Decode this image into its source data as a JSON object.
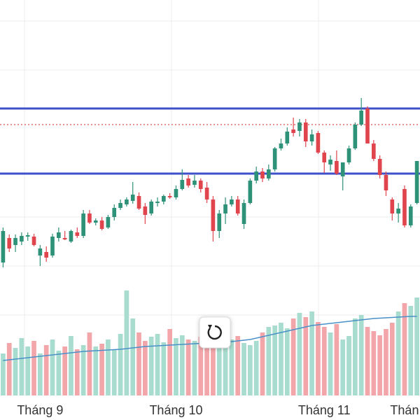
{
  "chart_data": {
    "type": "candlestick",
    "categories": [
      null,
      null,
      null,
      null,
      null,
      null,
      "Tháng 9",
      null,
      null,
      null,
      null,
      null,
      null,
      null,
      null,
      null,
      null,
      null,
      null,
      null,
      null,
      null,
      null,
      null,
      null,
      null,
      null,
      null,
      "Tháng 10",
      null,
      null,
      null,
      null,
      null,
      null,
      null,
      null,
      null,
      null,
      null,
      null,
      null,
      null,
      null,
      null,
      null,
      null,
      null,
      null,
      null,
      null,
      null,
      "Tháng 11",
      null,
      null,
      null,
      null,
      null,
      null,
      null,
      null,
      null,
      null,
      null,
      null,
      "Thán",
      null,
      null
    ],
    "open": [
      22.5,
      26,
      25,
      25.5,
      26.2,
      26.2,
      23.5,
      24,
      23.5,
      26,
      26,
      25.5,
      26.8,
      26.3,
      29.5,
      28.2,
      28.5,
      27.5,
      29,
      30.3,
      30.8,
      31.3,
      32,
      30.5,
      29.5,
      31,
      31.2,
      32,
      31.8,
      33,
      34.5,
      33.6,
      34.2,
      33.2,
      31.5,
      27,
      29.5,
      30.8,
      31.5,
      28,
      31,
      34.2,
      35.5,
      34.5,
      35.8,
      38.8,
      39.5,
      41.5,
      41.3,
      42.5,
      39.8,
      41,
      38.2,
      36.5,
      37,
      34.8,
      36.8,
      38.8,
      42.2,
      44.5,
      39.5,
      37.3,
      35,
      31.5,
      29.5,
      33,
      27.8,
      31
    ],
    "high": [
      27.5,
      26.5,
      26.5,
      26.8,
      26.8,
      26.6,
      25,
      24.8,
      26.6,
      27.5,
      27,
      27.2,
      27.5,
      30,
      30,
      28.8,
      29,
      29.3,
      30.8,
      31.5,
      31.8,
      34,
      32.5,
      31,
      31.5,
      31.8,
      32.2,
      32.4,
      33.5,
      35.8,
      35,
      35,
      34.5,
      34,
      32,
      30,
      31.8,
      32,
      32,
      31.5,
      34.5,
      36.2,
      36,
      36.5,
      39,
      40.2,
      41.8,
      43.2,
      43,
      43,
      41.5,
      41.3,
      38.5,
      37.8,
      38.5,
      36.8,
      39.2,
      42.5,
      46,
      44.8,
      40,
      37.8,
      35.5,
      31.8,
      31,
      33.5,
      30.8,
      37
    ],
    "low": [
      21.8,
      24,
      24,
      25,
      25.6,
      24.8,
      22,
      22.6,
      23.2,
      25.5,
      25.7,
      25.3,
      26,
      26,
      28,
      27.8,
      27.1,
      27.3,
      28.5,
      30,
      30.5,
      30.9,
      30,
      28,
      29.2,
      30.5,
      30.8,
      31.6,
      31.5,
      32.8,
      33.2,
      33.2,
      32.5,
      31,
      25.5,
      26,
      28,
      30.5,
      29.2,
      27.3,
      30.8,
      33.8,
      34,
      34.2,
      35.5,
      38.5,
      39.2,
      40.5,
      40.5,
      39,
      39.2,
      38,
      35.3,
      35.6,
      35,
      32.8,
      36.5,
      38.6,
      42,
      39.5,
      37,
      34.5,
      32,
      28.5,
      28.2,
      27.5,
      27.5,
      30.8
    ],
    "close": [
      27,
      24.5,
      26,
      26.3,
      26.4,
      25,
      24.5,
      23.2,
      26.2,
      26.8,
      25.8,
      27,
      26.3,
      29.5,
      28.2,
      28.5,
      27.3,
      29,
      30.3,
      31,
      31.5,
      32.2,
      30.2,
      29.3,
      31.2,
      31.2,
      32,
      31.8,
      33,
      34.3,
      33.5,
      34.2,
      33,
      31.5,
      27,
      29.5,
      30.8,
      31.5,
      29.5,
      31,
      34.2,
      35.5,
      34.5,
      35.8,
      38.8,
      39.5,
      41.2,
      41,
      42.5,
      39.8,
      40.8,
      38.2,
      36.8,
      37.2,
      35.2,
      36.8,
      38.8,
      42.2,
      44.2,
      39.5,
      37.3,
      35,
      32.8,
      29.5,
      30.2,
      27.8,
      30.5,
      37
    ],
    "ylim": [
      20,
      60
    ],
    "levels": [
      {
        "value": 44.5,
        "color": "#3f51c8",
        "style": "solid"
      },
      {
        "value": 35.2,
        "color": "#3f51c8",
        "style": "solid"
      },
      {
        "value": 42.2,
        "color": "#d9534f",
        "style": "dotted"
      }
    ],
    "volume": [
      60,
      75,
      68,
      82,
      70,
      78,
      60,
      72,
      80,
      64,
      70,
      85,
      66,
      72,
      90,
      70,
      74,
      80,
      65,
      88,
      150,
      110,
      90,
      78,
      84,
      88,
      76,
      95,
      82,
      86,
      80,
      78,
      84,
      90,
      76,
      70,
      92,
      80,
      85,
      75,
      72,
      78,
      90,
      98,
      100,
      104,
      96,
      110,
      118,
      112,
      120,
      105,
      98,
      90,
      102,
      80,
      85,
      110,
      115,
      98,
      92,
      86,
      95,
      104,
      120,
      132,
      128,
      140
    ],
    "volume_ma": [
      50,
      51,
      52,
      53,
      54,
      55,
      56,
      57,
      58,
      59,
      60,
      61,
      62,
      63,
      63.5,
      64,
      64.5,
      65,
      65.5,
      66,
      67,
      68,
      69,
      70,
      70.5,
      71,
      71.5,
      72,
      72.5,
      73,
      73.5,
      74,
      74.5,
      75,
      75.5,
      76,
      76.5,
      77,
      78,
      79,
      80,
      82,
      84,
      86,
      88,
      90,
      92,
      94,
      96,
      98,
      100,
      101,
      102,
      103,
      104,
      105,
      106,
      107,
      108,
      109,
      110,
      110.5,
      111,
      111.5,
      112,
      112.5,
      113,
      113
    ],
    "volume_ylim": [
      0,
      200
    ],
    "colors": {
      "up": "#2e9278",
      "down": "#e0444d",
      "volume_up": "#a8dccf",
      "volume_down": "#f3a6aa",
      "ma": "#4a90c8"
    }
  }
}
